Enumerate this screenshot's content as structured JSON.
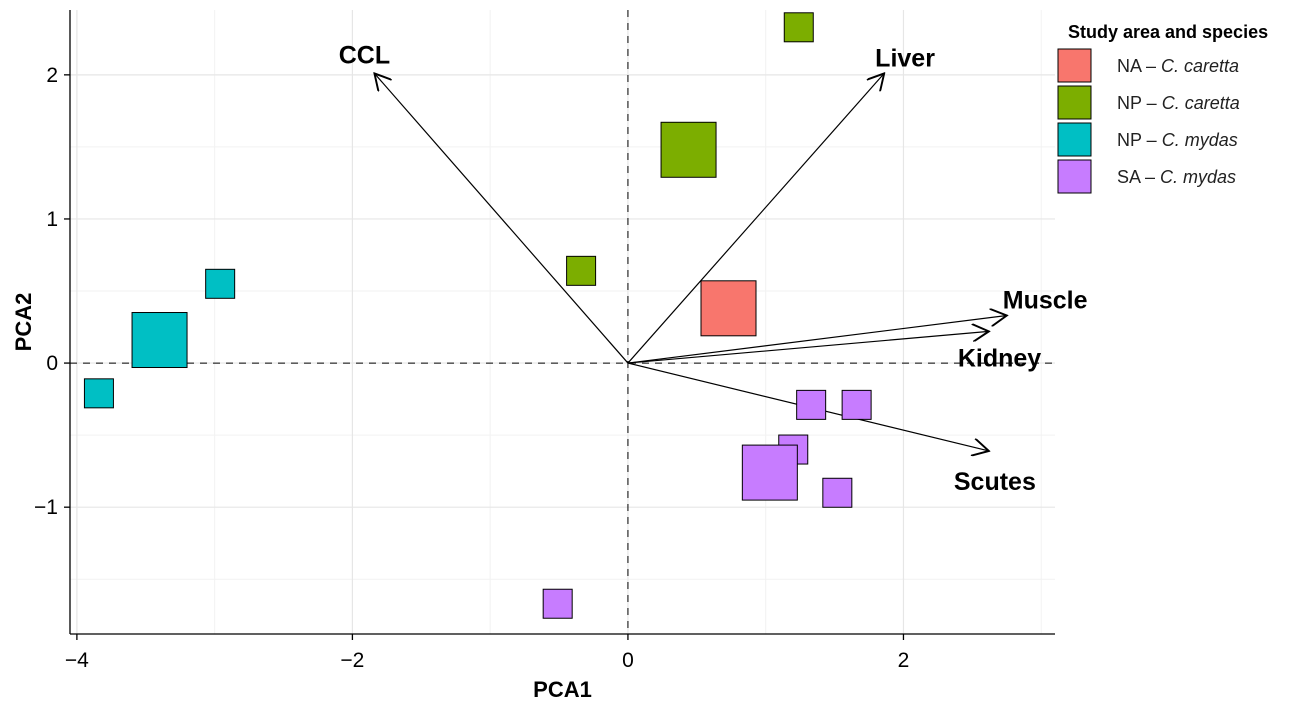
{
  "chart_data": {
    "type": "scatter",
    "subtype": "pca-biplot",
    "xlabel": "PCA1",
    "ylabel": "PCA2",
    "xlim": [
      -4.05,
      3.1
    ],
    "ylim": [
      -1.88,
      2.45
    ],
    "x_ticks": [
      -4,
      -2,
      0,
      2
    ],
    "x_tick_labels": [
      "−4",
      "−2",
      "0",
      "2"
    ],
    "y_ticks": [
      -1,
      0,
      1,
      2
    ],
    "y_tick_labels": [
      "−1",
      "0",
      "1",
      "2"
    ],
    "x_minor_gridlines": [
      -3,
      -1,
      1,
      3
    ],
    "y_minor_gridlines": [
      -1.5,
      -0.5,
      0.5,
      1.5
    ],
    "grid": true,
    "zero_lines": "dashed",
    "legend": {
      "title": "Study area and species",
      "position": "top-right",
      "entries": [
        {
          "group": "NA",
          "label_prefix": "NA – ",
          "label_species": "C. caretta"
        },
        {
          "group": "NP_cc",
          "label_prefix": "NP – ",
          "label_species": "C. caretta"
        },
        {
          "group": "NP_cm",
          "label_prefix": "NP – ",
          "label_species": "C. mydas"
        },
        {
          "group": "SA",
          "label_prefix": "SA – ",
          "label_species": "C. mydas"
        }
      ]
    },
    "colors": {
      "NA": "#F8766D",
      "NP_cc": "#7CAE00",
      "NP_cm": "#00BFC4",
      "SA": "#C77CFF"
    },
    "series": [
      {
        "group": "NA",
        "points": [
          {
            "x": 0.73,
            "y": 0.38,
            "size": 3
          }
        ]
      },
      {
        "group": "NP_cc",
        "points": [
          {
            "x": 1.24,
            "y": 2.33,
            "size": 1
          },
          {
            "x": 0.44,
            "y": 1.48,
            "size": 4
          },
          {
            "x": -0.34,
            "y": 0.64,
            "size": 1
          }
        ]
      },
      {
        "group": "NP_cm",
        "points": [
          {
            "x": -2.96,
            "y": 0.55,
            "size": 1
          },
          {
            "x": -3.4,
            "y": 0.16,
            "size": 4
          },
          {
            "x": -3.84,
            "y": -0.21,
            "size": 1
          }
        ]
      },
      {
        "group": "SA",
        "points": [
          {
            "x": 1.33,
            "y": -0.29,
            "size": 1
          },
          {
            "x": 1.66,
            "y": -0.29,
            "size": 1
          },
          {
            "x": 1.2,
            "y": -0.6,
            "size": 1
          },
          {
            "x": 1.03,
            "y": -0.76,
            "size": 4
          },
          {
            "x": 1.52,
            "y": -0.9,
            "size": 1
          },
          {
            "x": -0.51,
            "y": -1.67,
            "size": 1
          }
        ]
      }
    ],
    "loadings": [
      {
        "label": "CCL",
        "x": -1.84,
        "y": 2.01
      },
      {
        "label": "Liver",
        "x": 1.86,
        "y": 2.01
      },
      {
        "label": "Muscle",
        "x": 2.75,
        "y": 0.33
      },
      {
        "label": "Kidney",
        "x": 2.62,
        "y": 0.22
      },
      {
        "label": "Scutes",
        "x": 2.62,
        "y": -0.61
      }
    ]
  }
}
